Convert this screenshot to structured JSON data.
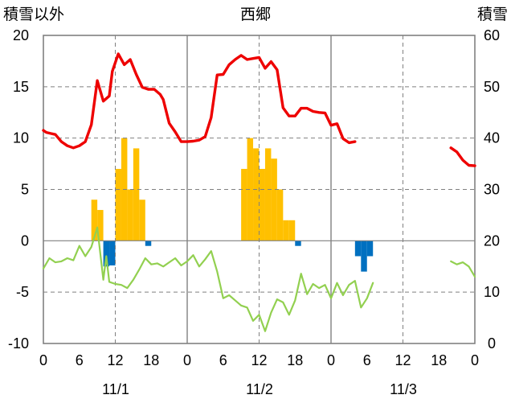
{
  "chart_data": {
    "type": "bar",
    "title": "西郷",
    "left_axis_label": "積雪以外",
    "right_axis_label": "積雪",
    "left_ylim": [
      -10,
      20
    ],
    "left_yticks": [
      "20",
      "15",
      "10",
      "5",
      "0",
      "-5",
      "-10"
    ],
    "right_ylim": [
      0,
      60
    ],
    "right_yticks": [
      "60",
      "50",
      "40",
      "30",
      "20",
      "10",
      "0"
    ],
    "x_range_hours": [
      0,
      72
    ],
    "x_tick_labels": [
      "0",
      "6",
      "12",
      "18",
      "0",
      "6",
      "12",
      "18",
      "0",
      "6",
      "12",
      "18",
      "0"
    ],
    "date_labels": [
      "11/1",
      "11/2",
      "11/3"
    ],
    "grid": "vertical dashed at 12h, solid at day boundaries; horizontal dashed",
    "colors": {
      "snow_depth": "#ee0000",
      "temperature": "#92d050",
      "snowfall": "#ffc000",
      "snow_decrease": "#0070c0",
      "axes": "#808080"
    },
    "snow_depth_series": [
      [
        0,
        41.5
      ],
      [
        0.5,
        41.1
      ],
      [
        1.2,
        40.9
      ],
      [
        2,
        40.7
      ],
      [
        3,
        39.3
      ],
      [
        4,
        38.5
      ],
      [
        5,
        38.1
      ],
      [
        6,
        38.5
      ],
      [
        7,
        39.3
      ],
      [
        8,
        42.6
      ],
      [
        9,
        51.2
      ],
      [
        10,
        47.2
      ],
      [
        11,
        48.2
      ],
      [
        11.5,
        53
      ],
      [
        12.5,
        56.4
      ],
      [
        13.5,
        54.3
      ],
      [
        14.5,
        55.3
      ],
      [
        15.5,
        52.4
      ],
      [
        16.5,
        49.9
      ],
      [
        17.5,
        49.5
      ],
      [
        18.5,
        49.5
      ],
      [
        19.5,
        48.5
      ],
      [
        20,
        47.5
      ],
      [
        21,
        42.9
      ],
      [
        22,
        41.2
      ],
      [
        23,
        39.3
      ],
      [
        24,
        39.3
      ],
      [
        25,
        39.4
      ],
      [
        26,
        39.6
      ],
      [
        27,
        40.3
      ],
      [
        28,
        44
      ],
      [
        29,
        52.3
      ],
      [
        30,
        52.4
      ],
      [
        31,
        54.3
      ],
      [
        32,
        55.3
      ],
      [
        33,
        56.1
      ],
      [
        34,
        55.3
      ],
      [
        35,
        55.5
      ],
      [
        36,
        55.7
      ],
      [
        37,
        53.6
      ],
      [
        38,
        54.9
      ],
      [
        39,
        53.3
      ],
      [
        40,
        45.9
      ],
      [
        41,
        44.3
      ],
      [
        42,
        44.3
      ],
      [
        43,
        45.8
      ],
      [
        44,
        45.8
      ],
      [
        45,
        45.2
      ],
      [
        46,
        45
      ],
      [
        47,
        44.9
      ],
      [
        48,
        42.5
      ],
      [
        49,
        42.8
      ],
      [
        50,
        39.9
      ],
      [
        51,
        39.1
      ],
      [
        52,
        39.3
      ]
    ],
    "snow_depth_series_2": [
      [
        68,
        38.1
      ],
      [
        69,
        37.3
      ],
      [
        70,
        35.7
      ],
      [
        71,
        34.7
      ],
      [
        72,
        34.6
      ]
    ],
    "temperature_series": [
      [
        0,
        -2.7
      ],
      [
        1,
        -1.7
      ],
      [
        2,
        -2.1
      ],
      [
        3,
        -2
      ],
      [
        4,
        -1.7
      ],
      [
        5,
        -1.9
      ],
      [
        6,
        -0.5
      ],
      [
        7,
        -1.5
      ],
      [
        8,
        -0.6
      ],
      [
        9,
        1.3
      ],
      [
        10,
        -3.8
      ],
      [
        10.5,
        -1.5
      ],
      [
        11,
        -4
      ],
      [
        12,
        -4.2
      ],
      [
        13,
        -4.3
      ],
      [
        14,
        -4.6
      ],
      [
        15,
        -3.8
      ],
      [
        16,
        -2.8
      ],
      [
        17,
        -1.7
      ],
      [
        18,
        -2.3
      ],
      [
        19,
        -2.2
      ],
      [
        20,
        -2.5
      ],
      [
        21,
        -2.1
      ],
      [
        22,
        -1.7
      ],
      [
        23,
        -2.4
      ],
      [
        24,
        -2
      ],
      [
        25,
        -1.4
      ],
      [
        26,
        -2.5
      ],
      [
        27,
        -1.8
      ],
      [
        28,
        -1
      ],
      [
        29,
        -3
      ],
      [
        30,
        -5.6
      ],
      [
        31,
        -5.3
      ],
      [
        32,
        -5.8
      ],
      [
        33,
        -6.3
      ],
      [
        34,
        -6.5
      ],
      [
        35,
        -7.8
      ],
      [
        36,
        -7.2
      ],
      [
        37,
        -8.8
      ],
      [
        38,
        -7
      ],
      [
        39,
        -5.7
      ],
      [
        40,
        -6
      ],
      [
        41,
        -7.2
      ],
      [
        42,
        -5.8
      ],
      [
        43,
        -3.2
      ],
      [
        44,
        -5.2
      ],
      [
        45,
        -4.2
      ],
      [
        46,
        -4.6
      ],
      [
        47,
        -4.3
      ],
      [
        48,
        -5.6
      ],
      [
        49,
        -4.1
      ],
      [
        50,
        -5.3
      ],
      [
        51,
        -4.3
      ],
      [
        52,
        -3.9
      ],
      [
        53,
        -6.5
      ],
      [
        54,
        -5.6
      ],
      [
        55,
        -4.1
      ]
    ],
    "temperature_series_2": [
      [
        68,
        -2
      ],
      [
        69,
        -2.3
      ],
      [
        70,
        -2.1
      ],
      [
        71,
        -2.5
      ],
      [
        72,
        -3.5
      ]
    ],
    "snowfall_bars": [
      [
        8,
        4
      ],
      [
        9,
        3
      ],
      [
        12,
        7
      ],
      [
        13,
        10
      ],
      [
        14,
        5
      ],
      [
        15,
        9
      ],
      [
        16,
        4
      ],
      [
        33,
        7
      ],
      [
        34,
        10
      ],
      [
        35,
        9
      ],
      [
        36,
        7
      ],
      [
        37,
        9
      ],
      [
        38,
        8
      ],
      [
        39,
        5
      ],
      [
        40,
        2
      ],
      [
        41,
        2
      ]
    ],
    "snow_decrease_bars": [
      [
        10,
        -2.5
      ],
      [
        11,
        -2.4
      ],
      [
        17,
        -0.5
      ],
      [
        42,
        -0.5
      ],
      [
        52,
        -1.5
      ],
      [
        53,
        -3
      ],
      [
        54,
        -1.5
      ]
    ]
  }
}
